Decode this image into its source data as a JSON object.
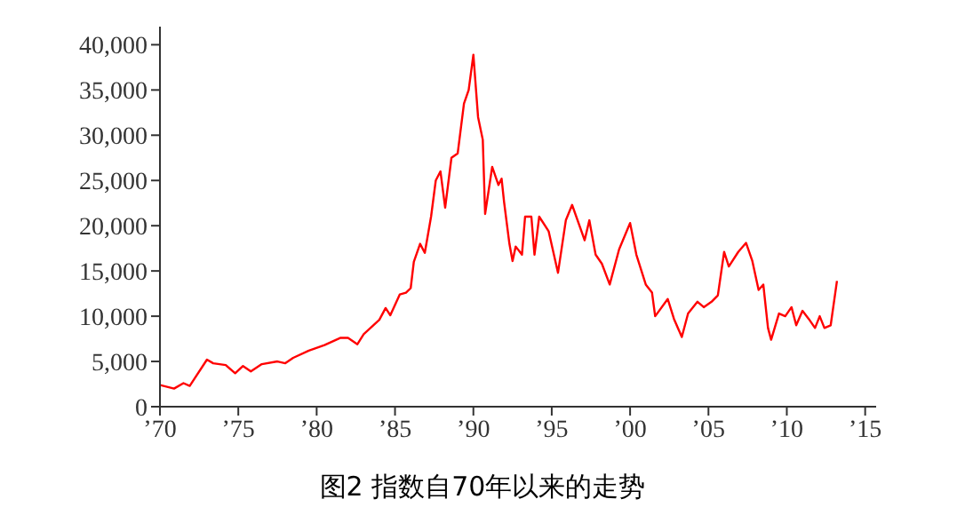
{
  "chart_data": {
    "type": "line",
    "title": "图2 指数自70年以来的走势",
    "xlim": [
      1970,
      2015.7
    ],
    "xticks": [
      {
        "value": 1970,
        "label": "’70"
      },
      {
        "value": 1975,
        "label": "’75"
      },
      {
        "value": 1980,
        "label": "’80"
      },
      {
        "value": 1985,
        "label": "’85"
      },
      {
        "value": 1990,
        "label": "’90"
      },
      {
        "value": 1995,
        "label": "’95"
      },
      {
        "value": 2000,
        "label": "’00"
      },
      {
        "value": 2005,
        "label": "’05"
      },
      {
        "value": 2010,
        "label": "’10"
      },
      {
        "value": 2015,
        "label": "’15"
      }
    ],
    "ylim": [
      0,
      42000
    ],
    "yticks": [
      0,
      {
        "value": 5000,
        "label": "5,000"
      },
      {
        "value": 10000,
        "label": "10,000"
      },
      {
        "value": 15000,
        "label": "15,000"
      },
      {
        "value": 20000,
        "label": "20,000"
      },
      {
        "value": 25000,
        "label": "25,000"
      },
      {
        "value": 30000,
        "label": "30,000"
      },
      {
        "value": 35000,
        "label": "35,000"
      },
      {
        "value": 40000,
        "label": "40,000"
      }
    ],
    "grid": false,
    "legend": false,
    "marker": "none",
    "line_style": "solid",
    "series": [
      {
        "color": "#ff0000",
        "x": [
          1970,
          1970.9,
          1971.5,
          1971.9,
          1973,
          1973.4,
          1974.2,
          1974.8,
          1975.3,
          1975.8,
          1976.5,
          1977.5,
          1978,
          1978.5,
          1979.5,
          1980.5,
          1981.5,
          1982,
          1982.6,
          1983,
          1984,
          1984.4,
          1984.7,
          1985.3,
          1985.7,
          1986,
          1986.2,
          1986.6,
          1986.9,
          1987.3,
          1987.6,
          1987.9,
          1988.2,
          1988.6,
          1989,
          1989.4,
          1989.7,
          1990,
          1990.3,
          1990.6,
          1990.75,
          1991.2,
          1991.6,
          1991.8,
          1991.96,
          1992.3,
          1992.5,
          1992.7,
          1993.1,
          1993.3,
          1993.7,
          1993.9,
          1994.2,
          1994.8,
          1995.4,
          1995.9,
          1996.3,
          1997.1,
          1997.4,
          1997.8,
          1998.2,
          1998.7,
          1999.3,
          2000,
          2000.4,
          2001,
          2001.4,
          2001.6,
          2002.4,
          2002.8,
          2003.3,
          2003.7,
          2004.3,
          2004.7,
          2005.2,
          2005.6,
          2006,
          2006.3,
          2006.9,
          2007.4,
          2007.8,
          2008.2,
          2008.5,
          2008.8,
          2009,
          2009.5,
          2009.9,
          2010.3,
          2010.6,
          2011,
          2011.4,
          2011.8,
          2012.1,
          2012.4,
          2012.8,
          2013.2
        ],
        "values": [
          2400,
          2000,
          2600,
          2300,
          5200,
          4800,
          4600,
          3700,
          4500,
          3900,
          4700,
          5000,
          4800,
          5400,
          6200,
          6800,
          7600,
          7600,
          6900,
          8000,
          9600,
          10900,
          10100,
          12400,
          12600,
          13100,
          16000,
          18000,
          17000,
          21000,
          25000,
          26000,
          22000,
          27500,
          28000,
          33500,
          35000,
          38900,
          32000,
          29500,
          21300,
          26500,
          24500,
          25200,
          22600,
          18000,
          16100,
          17700,
          16800,
          21000,
          21000,
          16800,
          21000,
          19400,
          14800,
          20600,
          22300,
          18400,
          20600,
          16800,
          15800,
          13500,
          17400,
          20300,
          16800,
          13500,
          12600,
          10000,
          11900,
          9700,
          7700,
          10300,
          11600,
          11000,
          11600,
          12300,
          17100,
          15500,
          17100,
          18100,
          16100,
          12900,
          13500,
          8700,
          7400,
          10300,
          10000,
          11000,
          9000,
          10600,
          9700,
          8700,
          10000,
          8700,
          9000,
          13900
        ]
      }
    ]
  }
}
